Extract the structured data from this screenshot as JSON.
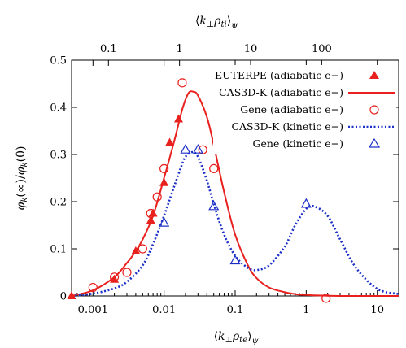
{
  "chart_data": {
    "type": "line",
    "xlabel": "⟨k⊥ρte⟩ψ",
    "xlabel_top": "⟨k⊥ρti⟩ψ",
    "ylabel": "φk(∞)/φk(0)",
    "x_scale": "log",
    "xlim": [
      0.0005,
      20
    ],
    "ylim": [
      0,
      0.5
    ],
    "x_ticks": [
      0.001,
      0.01,
      0.1,
      1,
      10
    ],
    "x_tick_labels": [
      "0.001",
      "0.01",
      "0.1",
      "1",
      "10"
    ],
    "x_top_ticks": [
      0.1,
      1,
      10,
      100
    ],
    "x_top_tick_labels": [
      "0.1",
      "1",
      "10",
      "100"
    ],
    "y_ticks": [
      0,
      0.1,
      0.2,
      0.3,
      0.4,
      0.5
    ],
    "y_tick_labels": [
      "0",
      "0.1",
      "0.2",
      "0.3",
      "0.4",
      "0.5"
    ],
    "legend_position": "top-right",
    "series": [
      {
        "name": "EUTERPE (adiabatic e−)",
        "style": "marker-filled-triangle",
        "color": "#e8201e",
        "x": [
          0.0005,
          0.002,
          0.004,
          0.0065,
          0.007,
          0.01,
          0.012,
          0.016
        ],
        "y": [
          0.0,
          0.035,
          0.095,
          0.16,
          0.175,
          0.24,
          0.325,
          0.375
        ]
      },
      {
        "name": "CAS3D-K (adiabatic e−)",
        "style": "solid-line",
        "color": "#e8201e",
        "x": [
          0.0005,
          0.001,
          0.002,
          0.003,
          0.004,
          0.005,
          0.007,
          0.01,
          0.014,
          0.018,
          0.022,
          0.026,
          0.03,
          0.04,
          0.05,
          0.07,
          0.1,
          0.15,
          0.2,
          0.3,
          0.5,
          0.7,
          1,
          2,
          5,
          20
        ],
        "y": [
          0.0,
          0.012,
          0.04,
          0.07,
          0.095,
          0.12,
          0.17,
          0.25,
          0.33,
          0.395,
          0.43,
          0.433,
          0.425,
          0.38,
          0.32,
          0.22,
          0.13,
          0.066,
          0.038,
          0.018,
          0.008,
          0.004,
          0.002,
          0.0005,
          0.0,
          0.0
        ]
      },
      {
        "name": "Gene (adiabatic e−)",
        "style": "marker-open-circle",
        "color": "#e8201e",
        "x": [
          0.001,
          0.002,
          0.003,
          0.005,
          0.0065,
          0.008,
          0.01,
          0.018,
          0.035,
          0.05,
          1.9
        ],
        "y": [
          0.018,
          0.04,
          0.05,
          0.1,
          0.175,
          0.21,
          0.27,
          0.452,
          0.31,
          0.27,
          -0.005
        ]
      },
      {
        "name": "CAS3D-K (kinetic e−)",
        "style": "dotted-line",
        "color": "#1c30c8",
        "x": [
          0.0005,
          0.001,
          0.002,
          0.003,
          0.005,
          0.007,
          0.01,
          0.013,
          0.017,
          0.02,
          0.025,
          0.03,
          0.04,
          0.05,
          0.07,
          0.1,
          0.15,
          0.2,
          0.3,
          0.5,
          0.7,
          1,
          1.3,
          2,
          3,
          5,
          10,
          20
        ],
        "y": [
          0.0,
          0.005,
          0.016,
          0.03,
          0.065,
          0.11,
          0.17,
          0.22,
          0.27,
          0.295,
          0.305,
          0.295,
          0.245,
          0.195,
          0.13,
          0.085,
          0.06,
          0.055,
          0.065,
          0.105,
          0.15,
          0.185,
          0.19,
          0.17,
          0.12,
          0.06,
          0.015,
          0.004
        ]
      },
      {
        "name": "Gene (kinetic e−)",
        "style": "marker-open-triangle",
        "color": "#1c30c8",
        "x": [
          0.01,
          0.02,
          0.03,
          0.05,
          0.1,
          1.0
        ],
        "y": [
          0.155,
          0.31,
          0.31,
          0.19,
          0.075,
          0.195
        ]
      }
    ]
  },
  "legend": {
    "euterpe_adiabatic": "EUTERPE (adiabatic e−)",
    "cas3dk_adiabatic": "CAS3D-K (adiabatic e−)",
    "gene_adiabatic": "Gene (adiabatic e−)",
    "cas3dk_kinetic": "CAS3D-K (kinetic e−)",
    "gene_kinetic": "Gene (kinetic e−)"
  },
  "colors": {
    "red": "#e8201e",
    "blue": "#1c30c8",
    "axis": "#000000"
  }
}
